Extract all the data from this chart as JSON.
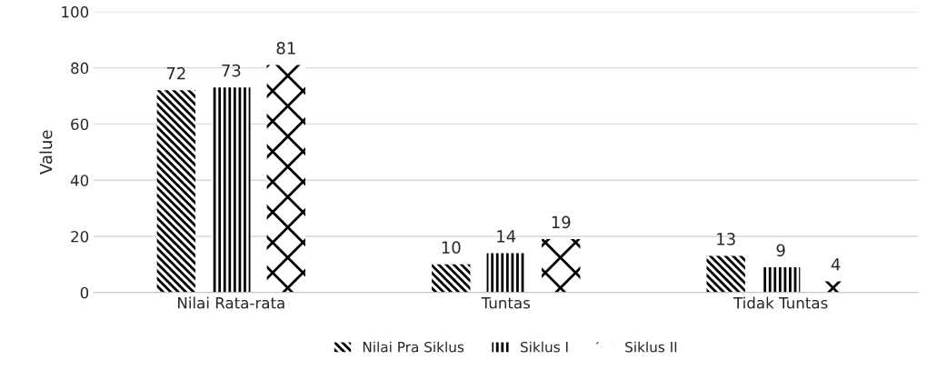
{
  "chart_data": {
    "type": "bar",
    "ylabel": "Value",
    "categories": [
      "Nilai Rata-rata",
      "Tuntas",
      "Tidak Tuntas"
    ],
    "series": [
      {
        "name": "Nilai Pra Siklus",
        "color": "#000000",
        "values": [
          72,
          10,
          13
        ]
      },
      {
        "name": "Siklus I",
        "color": "#000000",
        "values": [
          73,
          14,
          9
        ]
      },
      {
        "name": "Siklus II",
        "color": "#000000",
        "values": [
          81,
          19,
          4
        ]
      }
    ],
    "ylim": [
      0,
      100
    ],
    "yticks": [
      0,
      20,
      40,
      60,
      80,
      100
    ],
    "grid": "y",
    "legend": "bottom",
    "data_labels": true
  }
}
